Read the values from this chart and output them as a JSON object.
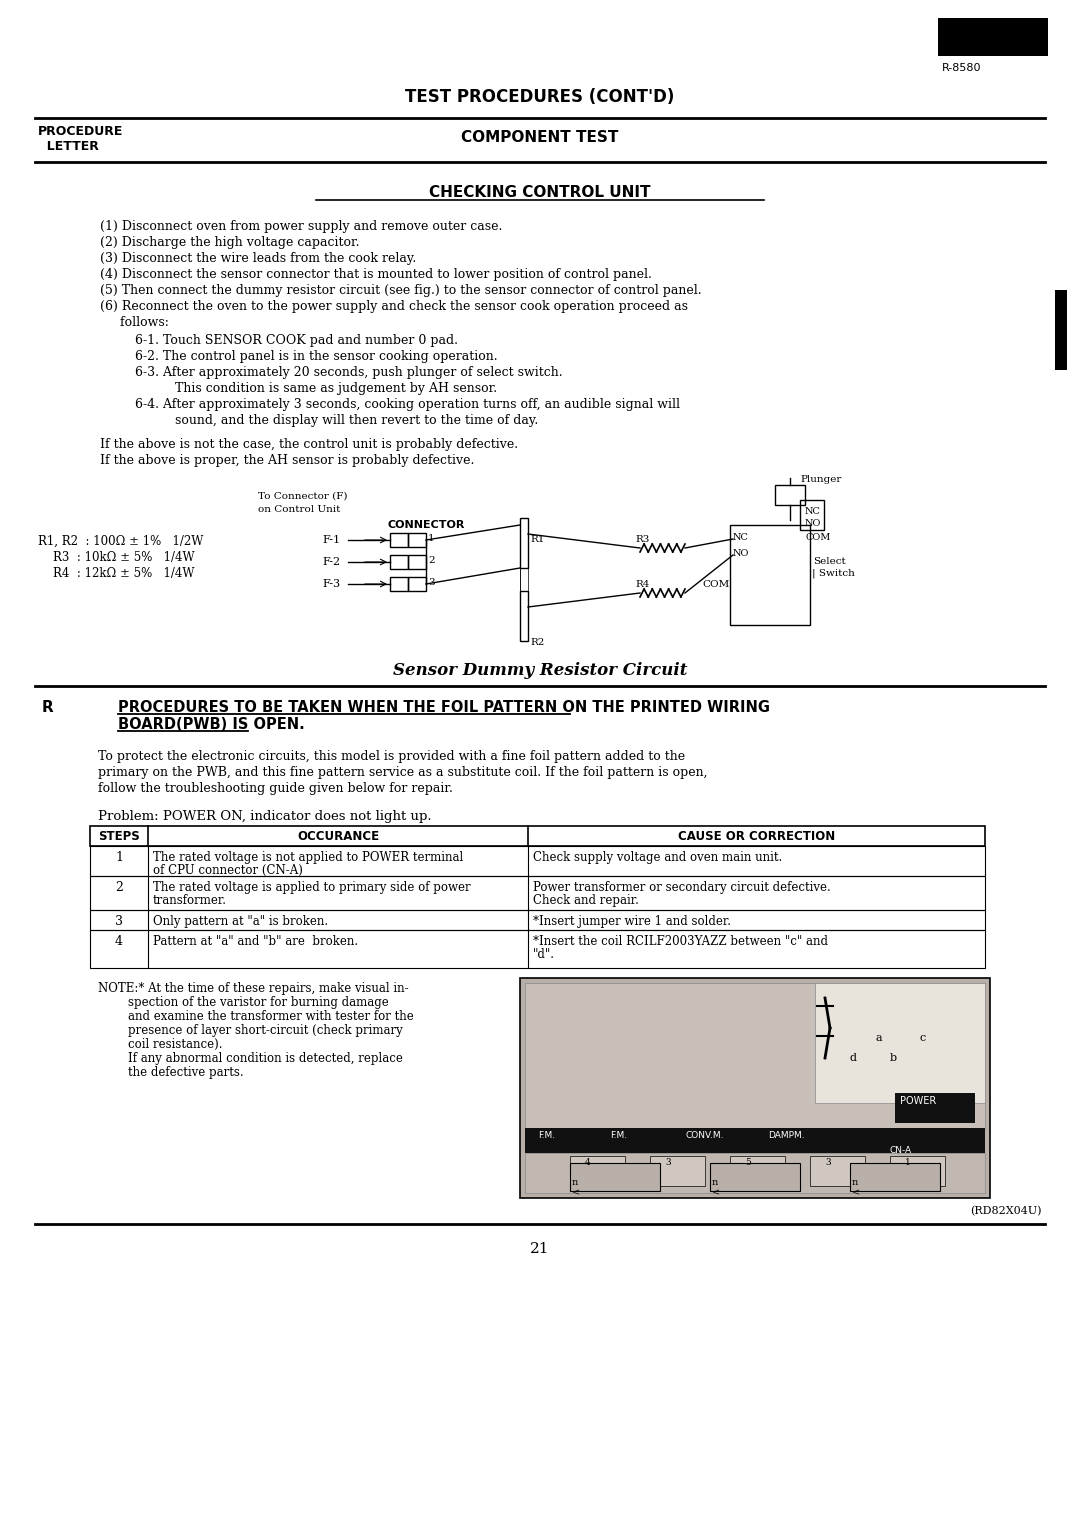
{
  "page_number": "21",
  "model_number": "R-8580",
  "main_title": "TEST PROCEDURES (CONT'D)",
  "section_title": "CHECKING CONTROL UNIT",
  "procedure_lines": [
    "(1) Disconnect oven from power supply and remove outer case.",
    "(2) Discharge the high voltage capacitor.",
    "(3) Disconnect the wire leads from the cook relay.",
    "(4) Disconnect the sensor connector that is mounted to lower position of control panel.",
    "(5) Then connect the dummy resistor circuit (see fig.) to the sensor connector of control panel.",
    "(6) Reconnect the oven to the power supply and check the sensor cook operation proceed as",
    "     follows:"
  ],
  "sub_steps": [
    "6-1. Touch SENSOR COOK pad and number 0 pad.",
    "6-2. The control panel is in the sensor cooking operation.",
    "6-3. After approximately 20 seconds, push plunger of select switch.",
    "          This condition is same as judgement by AH sensor.",
    "6-4. After approximately 3 seconds, cooking operation turns off, an audible signal will",
    "          sound, and the display will then revert to the time of day."
  ],
  "defective_lines": [
    "If the above is not the case, the control unit is probably defective.",
    "If the above is proper, the AH sensor is probably defective."
  ],
  "circuit_caption": "Sensor Dummy Resistor Circuit",
  "resistor_values": [
    "R1, R2  : 100Ω ± 1%   1/2W",
    "    R3  : 10kΩ ± 5%   1/4W",
    "    R4  : 12kΩ ± 5%   1/4W"
  ],
  "section_r_letter": "R",
  "section_r_title_line1": "PROCEDURES TO BE TAKEN WHEN THE FOIL PATTERN ON THE PRINTED WIRING",
  "section_r_title_line2": "BOARD(PWB) IS OPEN.",
  "pwb_lines": [
    "To protect the electronic circuits, this model is provided with a fine foil pattern added to the",
    "primary on the PWB, and this fine pattern service as a substitute coil. If the foil pattern is open,",
    "follow the troubleshooting guide given below for repair."
  ],
  "problem_statement": "Problem: POWER ON, indicator does not light up.",
  "table_headers": [
    "STEPS",
    "OCCURANCE",
    "CAUSE OR CORRECTION"
  ],
  "table_rows": [
    [
      "1",
      "The rated voltage is not applied to POWER terminal\nof CPU connector (CN-A)",
      "Check supply voltage and oven main unit."
    ],
    [
      "2",
      "The rated voltage is applied to primary side of power\ntransformer.",
      "Power transformer or secondary circuit defective.\nCheck and repair."
    ],
    [
      "3",
      "Only pattern at \"a\" is broken.",
      "*Insert jumper wire 1 and solder."
    ],
    [
      "4",
      "Pattern at \"a\" and \"b\" are  broken.",
      "*Insert the coil RCILF2003YAZZ between \"c\" and\n\"d\"."
    ]
  ],
  "note_lines": [
    "NOTE:* At the time of these repairs, make visual in-",
    "        spection of the varistor for burning damage",
    "        and examine the transformer with tester for the",
    "        presence of layer short-circuit (check primary",
    "        coil resistance).",
    "        If any abnormal condition is detected, replace",
    "        the defective parts."
  ],
  "reference_code": "(RD82X04U)",
  "bg_color": "#ffffff",
  "text_color": "#000000"
}
